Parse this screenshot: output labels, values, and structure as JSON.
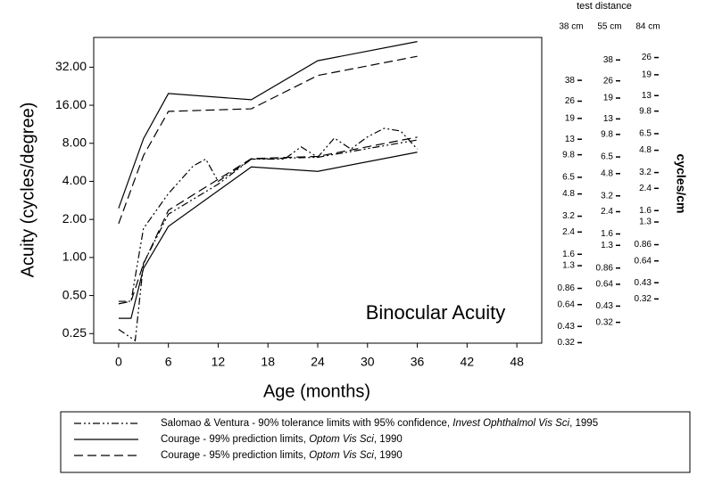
{
  "chart_data": {
    "type": "line",
    "annotation": "Binocular Acuity",
    "x_label": "Age (months)",
    "y_label": "Acuity (cycles/degree)",
    "log_y": true,
    "xlim": [
      -3,
      51
    ],
    "ylim": [
      0.21,
      55
    ],
    "xticks": [
      0,
      6,
      12,
      18,
      24,
      30,
      36,
      42,
      48
    ],
    "yticks": [
      {
        "value": 0.25,
        "label": "0.25"
      },
      {
        "value": 0.5,
        "label": "0.50"
      },
      {
        "value": 1,
        "label": "1.00"
      },
      {
        "value": 2,
        "label": "2.00"
      },
      {
        "value": 4,
        "label": "4.00"
      },
      {
        "value": 8,
        "label": "8.00"
      },
      {
        "value": 16,
        "label": "16.00"
      },
      {
        "value": 32,
        "label": "32.00"
      }
    ],
    "color": "#000000",
    "series": [
      {
        "name_parts": [
          {
            "text": "Salomao & Ventura - 90% tolerance limits with 95% confidence, ",
            "italic": false
          },
          {
            "text": "Invest Ophthalmol Vis Sci",
            "italic": true
          },
          {
            "text": ", 1995",
            "italic": false
          }
        ],
        "dash": "dashdot",
        "lines": [
          {
            "x": [
              0,
              1.5,
              3,
              6,
              9,
              10.5,
              12,
              16,
              20,
              22,
              24,
              26,
              28,
              30,
              32,
              34,
              36
            ],
            "values": [
              0.45,
              0.45,
              1.7,
              3.2,
              5.3,
              6,
              4,
              6,
              6,
              7.5,
              6.2,
              8.8,
              7.2,
              9,
              10.5,
              10,
              7.2
            ]
          },
          {
            "x": [
              0,
              2,
              3,
              6,
              12,
              16,
              24,
              36
            ],
            "values": [
              0.27,
              0.22,
              0.9,
              2.2,
              3.8,
              6,
              6.2,
              8.5
            ]
          }
        ]
      },
      {
        "name_parts": [
          {
            "text": "Courage - 99% prediction limits, ",
            "italic": false
          },
          {
            "text": "Optom Vis Sci",
            "italic": true
          },
          {
            "text": ", 1990",
            "italic": false
          }
        ],
        "dash": "solid",
        "lines": [
          {
            "x": [
              0,
              3,
              6,
              16,
              24,
              36
            ],
            "values": [
              2.45,
              8.7,
              19.8,
              17.7,
              36,
              51
            ]
          },
          {
            "x": [
              0,
              1.5,
              3,
              6,
              16,
              24,
              36
            ],
            "values": [
              0.33,
              0.33,
              0.82,
              1.76,
              5.2,
              4.8,
              6.8
            ]
          }
        ]
      },
      {
        "name_parts": [
          {
            "text": "Courage - 95% prediction limits, ",
            "italic": false
          },
          {
            "text": "Optom Vis Sci",
            "italic": true
          },
          {
            "text": ", 1990",
            "italic": false
          }
        ],
        "dash": "dashed",
        "lines": [
          {
            "x": [
              0,
              3,
              6,
              16,
              24,
              36
            ],
            "values": [
              1.85,
              6.4,
              14.3,
              15,
              27.5,
              39
            ]
          },
          {
            "x": [
              0,
              1.5,
              3,
              6,
              16,
              24,
              36
            ],
            "values": [
              0.43,
              0.45,
              0.89,
              2.36,
              6.05,
              6.3,
              8.95
            ]
          }
        ]
      }
    ],
    "right_axes_title": "test distance",
    "right_axes_unit": "cycles/cm",
    "right_axes": [
      {
        "label": "38 cm",
        "ylim": [
          0.317,
          83
        ],
        "yticks": [
          38,
          26,
          19,
          13,
          9.8,
          6.5,
          4.8,
          3.2,
          2.4,
          1.6,
          1.3,
          0.86,
          0.64,
          0.43,
          0.32
        ]
      },
      {
        "label": "55 cm",
        "ylim": [
          0.219,
          57.3
        ],
        "yticks": [
          38,
          26,
          19,
          13,
          9.8,
          6.5,
          4.8,
          3.2,
          2.4,
          1.6,
          1.3,
          0.86,
          0.64,
          0.43,
          0.32
        ]
      },
      {
        "label": "84 cm",
        "ylim": [
          0.143,
          37.5
        ],
        "yticks": [
          26,
          19,
          13,
          9.8,
          6.5,
          4.8,
          3.2,
          2.4,
          1.6,
          1.3,
          0.86,
          0.64,
          0.43,
          0.32
        ]
      }
    ]
  }
}
